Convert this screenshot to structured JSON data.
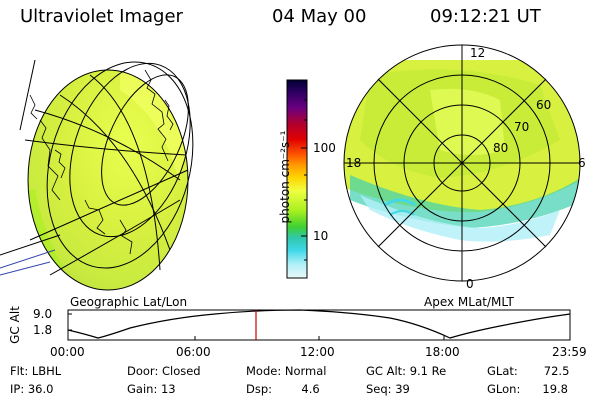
{
  "header": {
    "instrument": "Ultraviolet Imager",
    "date": "04 May 00",
    "time": "09:12:21 UT"
  },
  "colorbar": {
    "unit_label": "photon cm⁻²s⁻¹",
    "ticks": [
      "100",
      "10"
    ],
    "scale": "log",
    "colors": [
      "#000033",
      "#330066",
      "#6a0080",
      "#b00030",
      "#e00000",
      "#ff5a00",
      "#ff9a00",
      "#ffd200",
      "#f0ff40",
      "#a8f020",
      "#40d030",
      "#30c8b0",
      "#40d8e8",
      "#b0f0f8",
      "#e8f8f8"
    ]
  },
  "left_panel": {
    "caption": "Geographic Lat/Lon"
  },
  "right_panel": {
    "caption": "Apex MLat/MLT",
    "mlt_labels": {
      "top": "12",
      "right": "6",
      "bottom": "0",
      "left": "18"
    },
    "lat_labels": [
      "60",
      "70",
      "80"
    ]
  },
  "altitude_plot": {
    "ylabel": "GC Alt",
    "yticks": [
      "9.0",
      "1.8"
    ],
    "xticks": [
      "00:00",
      "06:00",
      "12:00",
      "18:00",
      "23:59"
    ],
    "current_time_marker_color": "#cc0000"
  },
  "status": {
    "row1": [
      {
        "label": "Flt:",
        "value": "LBHL"
      },
      {
        "label": "Door:",
        "value": "Closed"
      },
      {
        "label": "Mode:",
        "value": "Normal"
      },
      {
        "label": "GC Alt:",
        "value": "9.1 Re"
      },
      {
        "label": "GLat:",
        "value": "72.5"
      }
    ],
    "row2": [
      {
        "label": "IP:",
        "value": "36.0"
      },
      {
        "label": "Gain:",
        "value": "13"
      },
      {
        "label": "Dsp:",
        "value": "4.6"
      },
      {
        "label": "Seq:",
        "value": "39"
      },
      {
        "label": "GLon:",
        "value": "19.8"
      }
    ]
  }
}
